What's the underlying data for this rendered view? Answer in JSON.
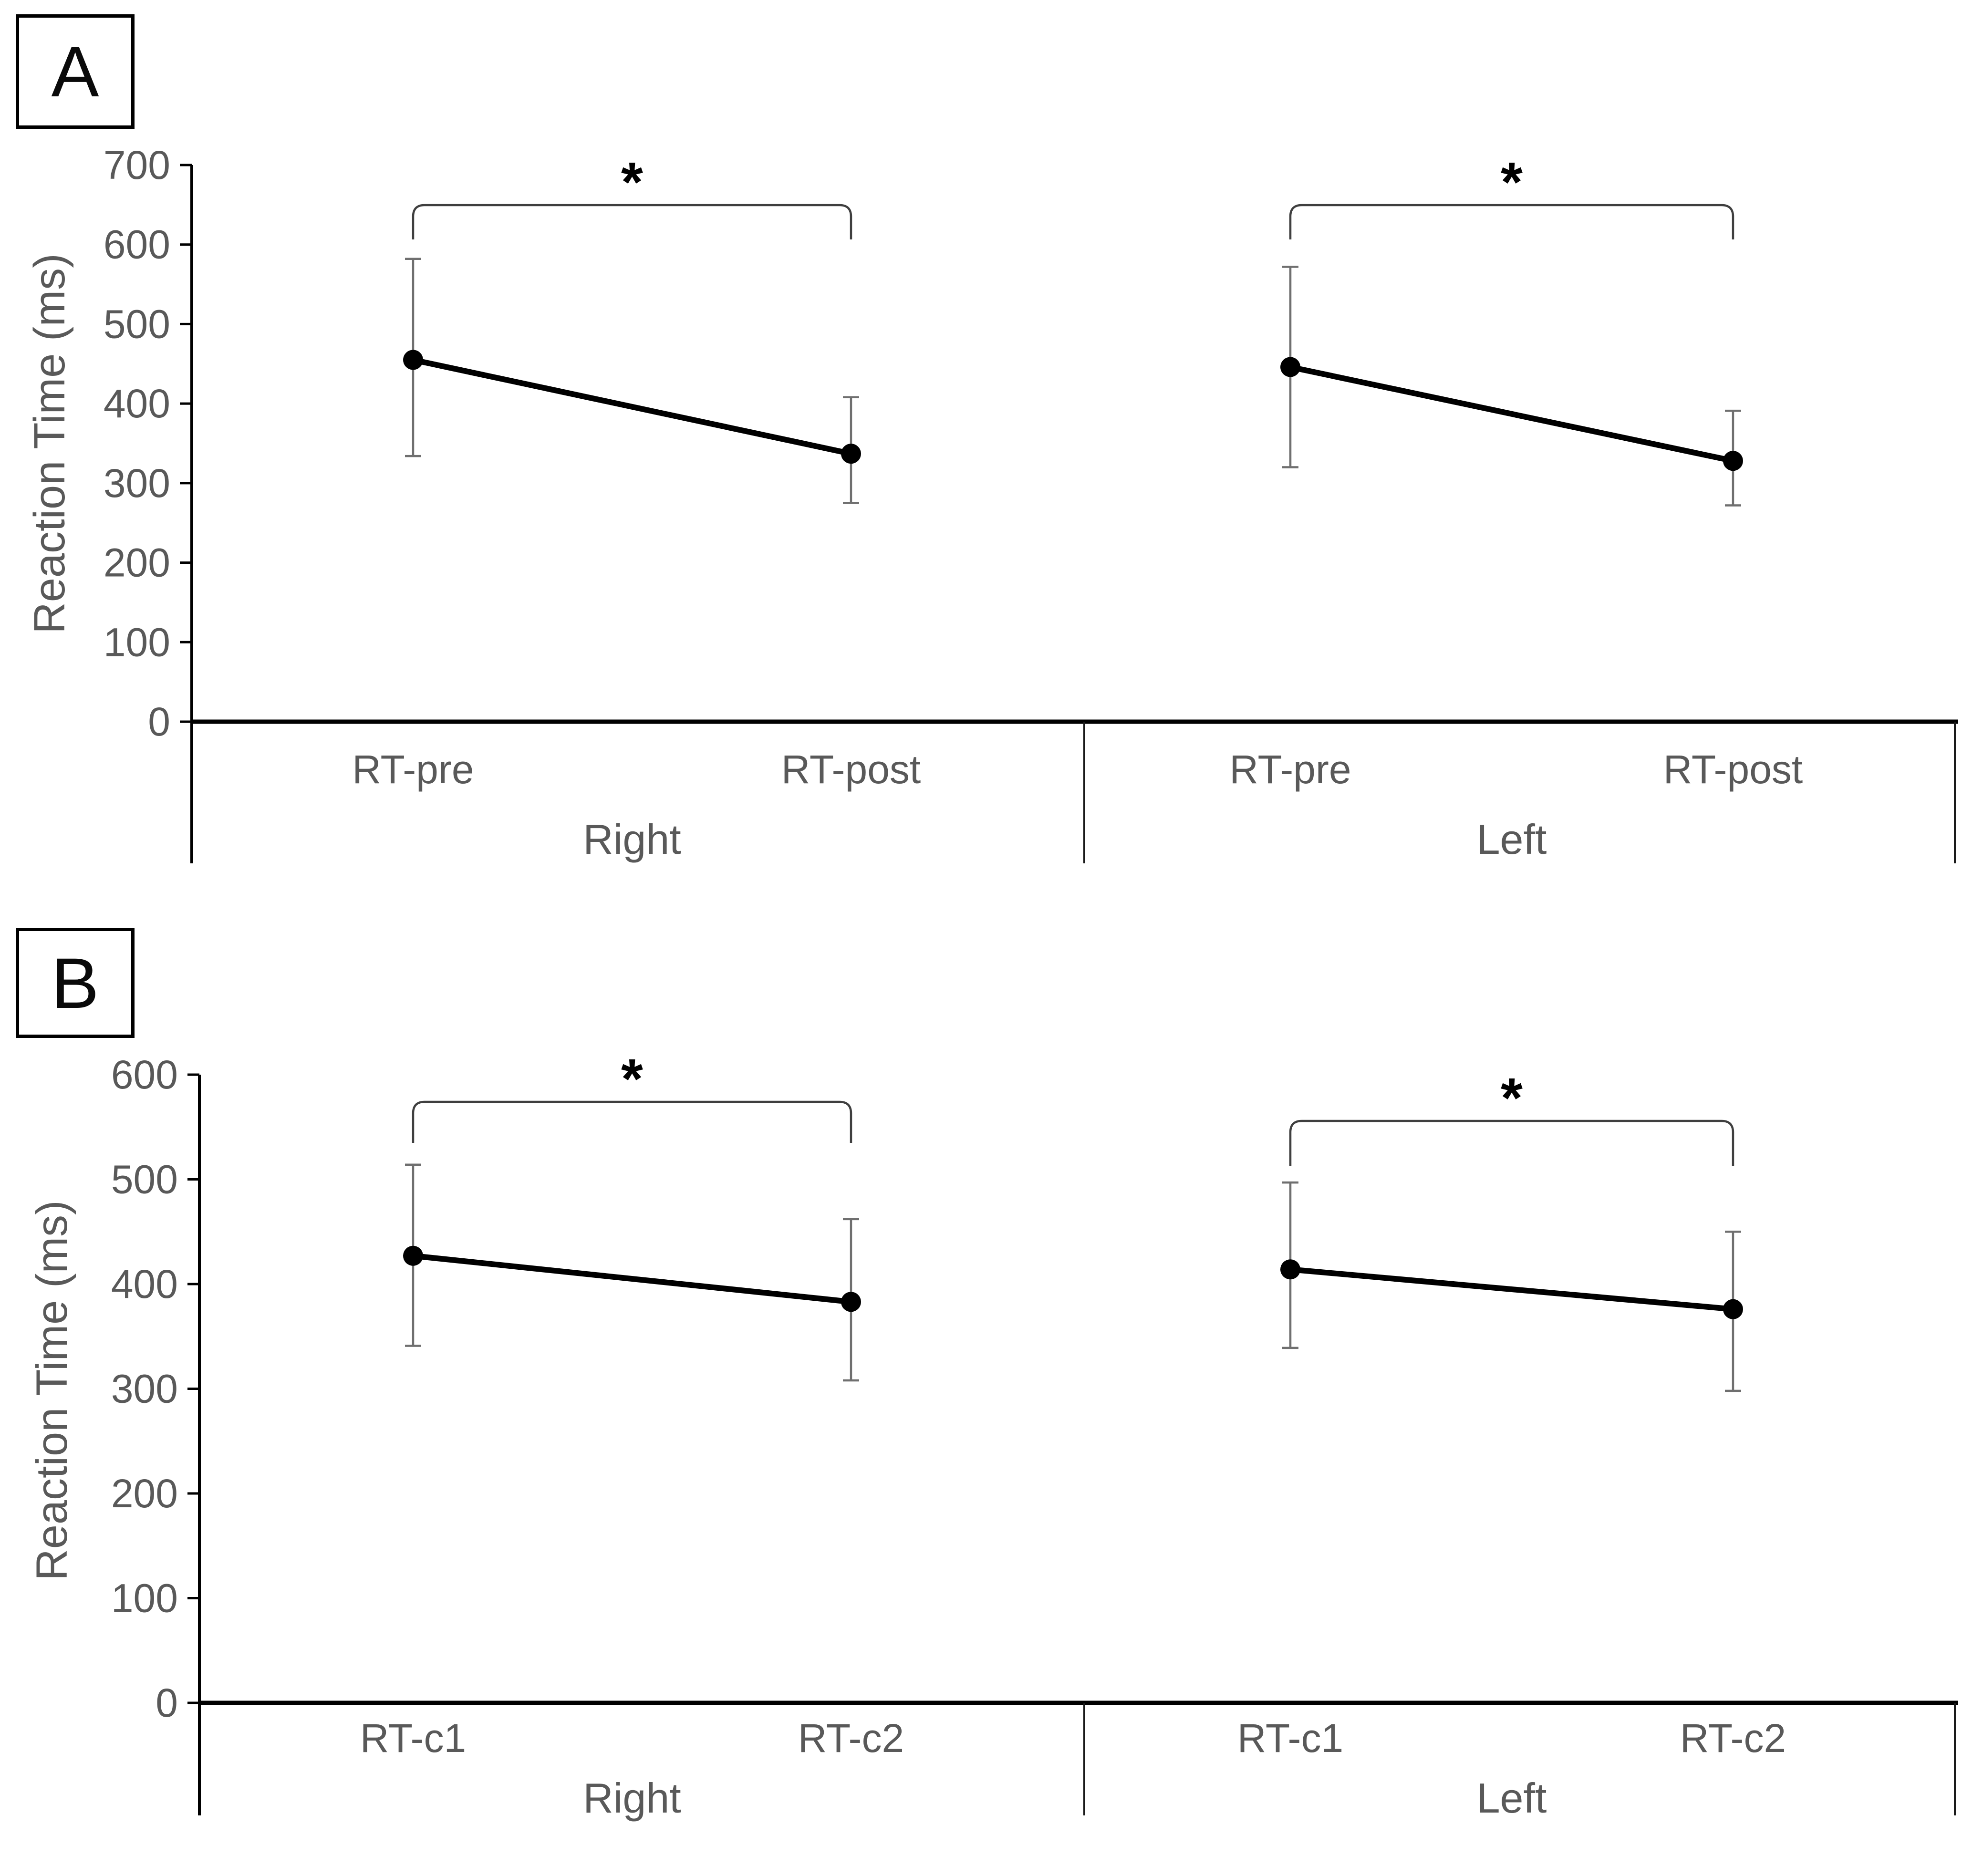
{
  "figure": {
    "background": "#ffffff",
    "panel_labels": [
      "A",
      "B"
    ]
  },
  "colors": {
    "series": "#000000",
    "marker": "#000000",
    "error_bar": "#6f6f6f",
    "axis": "#000000",
    "divider": "#1a1a1a",
    "bracket": "#3f3f3f",
    "text_gray": "#595959",
    "sig_star": "#000000"
  },
  "chart_data": [
    {
      "panel": "A",
      "type": "line",
      "title": "",
      "xlabel": "",
      "ylabel": "Reaction Time (ms)",
      "ylim": [
        0,
        700
      ],
      "yticks": [
        0,
        100,
        200,
        300,
        400,
        500,
        600,
        700
      ],
      "grid": false,
      "legend": "none",
      "marker_style": "filled-circle",
      "error_bars": true,
      "groups": [
        {
          "label": "Right",
          "categories": [
            "RT-pre",
            "RT-post"
          ],
          "means": [
            455,
            337
          ],
          "err_low": [
            334,
            275
          ],
          "err_high": [
            582,
            408
          ],
          "sig_label": "*"
        },
        {
          "label": "Left",
          "categories": [
            "RT-pre",
            "RT-post"
          ],
          "means": [
            446,
            328
          ],
          "err_low": [
            320,
            272
          ],
          "err_high": [
            572,
            391
          ],
          "sig_label": "*"
        }
      ]
    },
    {
      "panel": "B",
      "type": "line",
      "title": "",
      "xlabel": "",
      "ylabel": "Reaction Time (ms)",
      "ylim": [
        0,
        600
      ],
      "yticks": [
        0,
        100,
        200,
        300,
        400,
        500,
        600
      ],
      "grid": false,
      "legend": "none",
      "marker_style": "filled-circle",
      "error_bars": true,
      "groups": [
        {
          "label": "Right",
          "categories": [
            "RT-c1",
            "RT-c2"
          ],
          "means": [
            427,
            383
          ],
          "err_low": [
            341,
            308
          ],
          "err_high": [
            514,
            462
          ],
          "sig_label": "*"
        },
        {
          "label": "Left",
          "categories": [
            "RT-c1",
            "RT-c2"
          ],
          "means": [
            414,
            376
          ],
          "err_low": [
            339,
            298
          ],
          "err_high": [
            497,
            450
          ],
          "sig_label": "*"
        }
      ]
    }
  ]
}
